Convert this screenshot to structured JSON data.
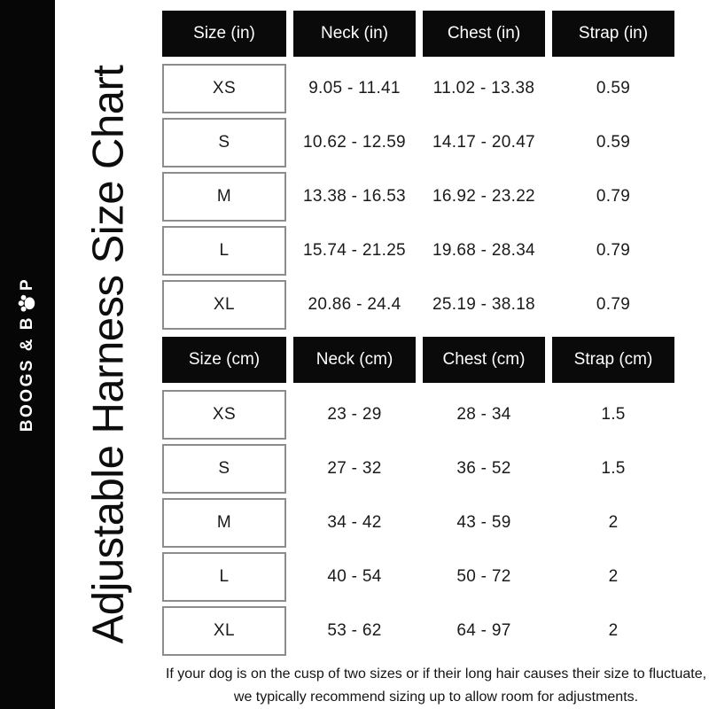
{
  "brand": {
    "text_before": "BOOGS & B",
    "text_after": "P",
    "paw_icon": "paw-icon"
  },
  "title": "Adjustable Harness Size Chart",
  "note": "If your dog is on the cusp of two sizes or if their long hair causes their size to fluctuate, we typically recommend sizing up to allow room for adjustments.",
  "colors": {
    "black": "#0a0a0a",
    "white": "#ffffff",
    "border_gray": "#8c8c8c",
    "text_dark": "#1a1a1a"
  },
  "chart_data": [
    {
      "type": "table",
      "name": "size-table-inches",
      "headers": [
        "Size (in)",
        "Neck (in)",
        "Chest (in)",
        "Strap (in)"
      ],
      "rows": [
        [
          "XS",
          "9.05 - 11.41",
          "11.02 - 13.38",
          "0.59"
        ],
        [
          "S",
          "10.62 - 12.59",
          "14.17 - 20.47",
          "0.59"
        ],
        [
          "M",
          "13.38 - 16.53",
          "16.92 - 23.22",
          "0.79"
        ],
        [
          "L",
          "15.74 - 21.25",
          "19.68 - 28.34",
          "0.79"
        ],
        [
          "XL",
          "20.86 - 24.4",
          "25.19 - 38.18",
          "0.79"
        ]
      ]
    },
    {
      "type": "table",
      "name": "size-table-cm",
      "headers": [
        "Size (cm)",
        "Neck (cm)",
        "Chest (cm)",
        "Strap (cm)"
      ],
      "rows": [
        [
          "XS",
          "23 - 29",
          "28 - 34",
          "1.5"
        ],
        [
          "S",
          "27 - 32",
          "36 - 52",
          "1.5"
        ],
        [
          "M",
          "34 - 42",
          "43 - 59",
          "2"
        ],
        [
          "L",
          "40 - 54",
          "50 - 72",
          "2"
        ],
        [
          "XL",
          "53 - 62",
          "64 - 97",
          "2"
        ]
      ]
    }
  ]
}
